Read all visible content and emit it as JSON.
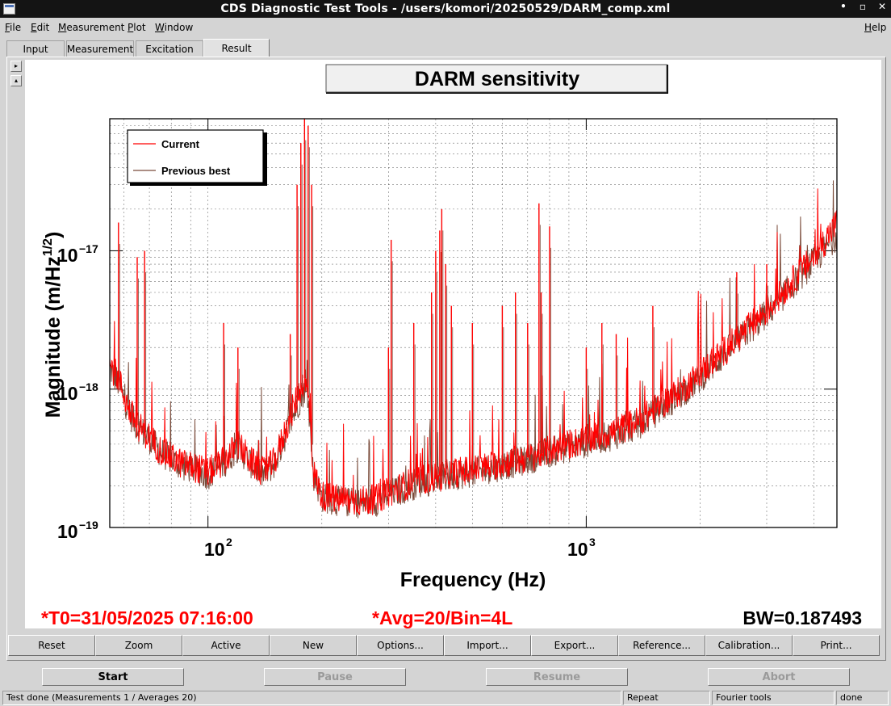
{
  "window": {
    "title": "CDS Diagnostic Test Tools - /users/komori/20250529/DARM_comp.xml",
    "controls": [
      "•",
      "▫",
      "✕"
    ]
  },
  "menu": {
    "items": [
      "File",
      "Edit",
      "Measurement",
      "Plot",
      "Window"
    ],
    "help": "Help"
  },
  "tabs": [
    {
      "label": "Input"
    },
    {
      "label": "Measurement"
    },
    {
      "label": "Excitation"
    },
    {
      "label": "Result",
      "active": true
    }
  ],
  "plot": {
    "title": "DARM sensitivity",
    "legend": [
      "Current",
      "Previous best"
    ],
    "footer_t0": "*T0=31/05/2025 07:16:00",
    "footer_avg": "*Avg=20/Bin=4L",
    "footer_bw": "BW=0.187493"
  },
  "chart_data": {
    "type": "line",
    "title": "DARM sensitivity",
    "xlabel": "Frequency (Hz)",
    "ylabel": "Magnitude (m/Hz^1/2)",
    "xscale": "log",
    "yscale": "log",
    "xlim": [
      55,
      4600
    ],
    "ylim": [
      1e-19,
      9e-17
    ],
    "xticks": [
      "10^2",
      "10^3"
    ],
    "yticks": [
      "10^-19",
      "10^-18",
      "10^-17"
    ],
    "grid": true,
    "legend_position": "top-left",
    "colors": {
      "Current": "#ff0000",
      "Previous best": "#7a4b3a"
    },
    "series": [
      {
        "name": "Current",
        "x": [
          55,
          58,
          60,
          62,
          65,
          70,
          75,
          80,
          85,
          90,
          100,
          110,
          120,
          130,
          140,
          150,
          160,
          170,
          180,
          185,
          190,
          200,
          220,
          250,
          280,
          300,
          330,
          360,
          400,
          450,
          500,
          600,
          700,
          800,
          900,
          1000,
          1200,
          1400,
          1600,
          1800,
          2000,
          2500,
          3000,
          3500,
          4000,
          4600
        ],
        "y": [
          1.5e-18,
          1.2e-18,
          9e-19,
          7e-19,
          5.5e-19,
          4.5e-19,
          3.6e-19,
          3.2e-19,
          2.9e-19,
          2.8e-19,
          2.5e-19,
          3e-19,
          4e-19,
          3e-19,
          2.5e-19,
          3e-19,
          5e-19,
          8e-19,
          1.2e-18,
          8e-19,
          2.5e-19,
          1.7e-19,
          1.6e-19,
          1.55e-19,
          1.6e-19,
          1.8e-19,
          2e-19,
          2.2e-19,
          2.3e-19,
          2.5e-19,
          2.6e-19,
          2.9e-19,
          3.2e-19,
          3.6e-19,
          4e-19,
          4.3e-19,
          5e-19,
          6e-19,
          8e-19,
          1e-18,
          1.3e-18,
          2.3e-18,
          3.7e-18,
          6e-18,
          9e-18,
          1.6e-17
        ]
      },
      {
        "name": "Previous best",
        "x": [
          55,
          58,
          60,
          62,
          65,
          70,
          75,
          80,
          85,
          90,
          100,
          110,
          120,
          130,
          140,
          150,
          160,
          170,
          180,
          185,
          190,
          200,
          220,
          250,
          280,
          300,
          330,
          360,
          400,
          450,
          500,
          600,
          700,
          800,
          900,
          1000,
          1200,
          1400,
          1600,
          1800,
          2000,
          2500,
          3000,
          3500,
          4000,
          4600
        ],
        "y": [
          1.4e-18,
          1.1e-18,
          8.5e-19,
          6.7e-19,
          5.3e-19,
          4.4e-19,
          3.5e-19,
          3.1e-19,
          2.8e-19,
          2.7e-19,
          2.4e-19,
          2.9e-19,
          3.8e-19,
          2.9e-19,
          2.4e-19,
          2.9e-19,
          4.6e-19,
          7e-19,
          1e-18,
          7e-19,
          2.4e-19,
          1.65e-19,
          1.55e-19,
          1.5e-19,
          1.55e-19,
          1.75e-19,
          1.9e-19,
          2.1e-19,
          2.2e-19,
          2.4e-19,
          2.5e-19,
          2.8e-19,
          3.1e-19,
          3.5e-19,
          3.8e-19,
          4.1e-19,
          4.7e-19,
          5.7e-19,
          7.5e-19,
          9.5e-19,
          1.2e-18,
          2.2e-18,
          3.5e-18,
          5.6e-18,
          8.4e-18,
          1.3e-17
        ]
      }
    ],
    "peaks": [
      {
        "x": 58,
        "y": 1.6e-17
      },
      {
        "x": 65,
        "y": 9e-18
      },
      {
        "x": 68,
        "y": 1e-17
      },
      {
        "x": 110,
        "y": 3e-18
      },
      {
        "x": 120,
        "y": 2e-18
      },
      {
        "x": 165,
        "y": 2.5e-18
      },
      {
        "x": 172,
        "y": 3e-17
      },
      {
        "x": 176,
        "y": 6e-17
      },
      {
        "x": 180,
        "y": 9e-17
      },
      {
        "x": 184,
        "y": 8e-17
      },
      {
        "x": 188,
        "y": 3e-17
      },
      {
        "x": 300,
        "y": 2e-18
      },
      {
        "x": 305,
        "y": 1.2e-17
      },
      {
        "x": 350,
        "y": 3e-18
      },
      {
        "x": 390,
        "y": 5e-18
      },
      {
        "x": 400,
        "y": 1e-17
      },
      {
        "x": 410,
        "y": 1.4e-17
      },
      {
        "x": 415,
        "y": 2e-17
      },
      {
        "x": 425,
        "y": 8e-18
      },
      {
        "x": 440,
        "y": 4e-18
      },
      {
        "x": 500,
        "y": 3e-18
      },
      {
        "x": 600,
        "y": 4e-18
      },
      {
        "x": 650,
        "y": 5e-18
      },
      {
        "x": 700,
        "y": 3e-18
      },
      {
        "x": 750,
        "y": 2.2e-17
      },
      {
        "x": 760,
        "y": 5e-18
      },
      {
        "x": 800,
        "y": 1.5e-17
      },
      {
        "x": 1000,
        "y": 2e-18
      },
      {
        "x": 1100,
        "y": 3e-18
      },
      {
        "x": 1200,
        "y": 2.5e-18
      },
      {
        "x": 1500,
        "y": 4e-18
      },
      {
        "x": 2500,
        "y": 7e-18
      },
      {
        "x": 3000,
        "y": 8e-18
      }
    ]
  },
  "buttons": [
    "Reset",
    "Zoom",
    "Active",
    "New",
    "Options...",
    "Import...",
    "Export...",
    "Reference...",
    "Calibration...",
    "Print..."
  ],
  "run_buttons": {
    "start": "Start",
    "pause": "Pause",
    "resume": "Resume",
    "abort": "Abort"
  },
  "status": {
    "message": "Test done (Measurements 1 / Averages 20)",
    "repeat": "Repeat",
    "tools": "Fourier tools",
    "state": "done"
  }
}
